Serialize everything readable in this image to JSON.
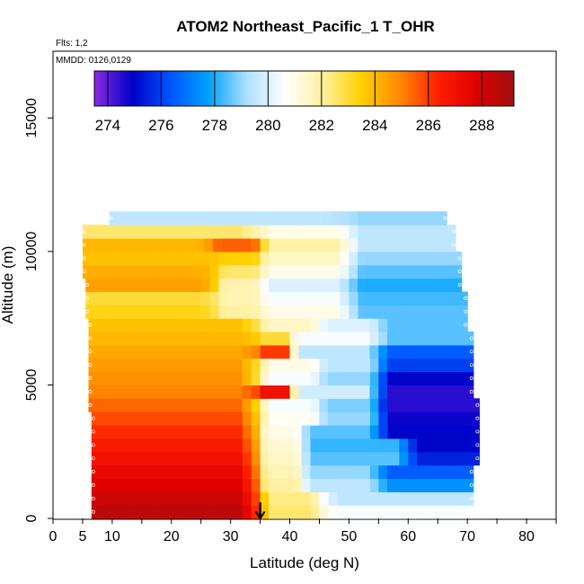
{
  "chart_data": {
    "type": "heatmap",
    "title": "ATOM2 Northeast_Pacific_1 T_OHR",
    "subtitle_flights": "Flts: 1,2",
    "subtitle_dates": "MMDD: 0126,0129",
    "xlabel": "Latitude (deg N)",
    "ylabel": "Altitude (m)",
    "xlim": [
      0,
      85
    ],
    "ylim": [
      0,
      17500
    ],
    "x_ticks": [
      "0",
      "5",
      "10",
      "20",
      "30",
      "40",
      "50",
      "60",
      "70",
      "80"
    ],
    "x_tick_values": [
      0,
      5,
      10,
      20,
      30,
      40,
      50,
      60,
      70,
      80
    ],
    "y_ticks": [
      "0",
      "5000",
      "10000",
      "15000"
    ],
    "y_tick_values": [
      0,
      5000,
      10000,
      15000
    ],
    "colorbar": {
      "range": [
        273.5,
        289.2
      ],
      "ticks": [
        "274",
        "276",
        "278",
        "280",
        "282",
        "284",
        "286",
        "288"
      ],
      "tick_values": [
        274,
        276,
        278,
        280,
        282,
        284,
        286,
        288
      ],
      "colors": [
        "#8a2be2",
        "#0000c8",
        "#0055ff",
        "#00a2ff",
        "#aee0ff",
        "#ffffff",
        "#fff0a0",
        "#ffd000",
        "#ff8a00",
        "#ff2000",
        "#e00000",
        "#a01010"
      ]
    },
    "marker_latitude": 35,
    "grid": false,
    "layers": [
      {
        "alt": 250,
        "segments": [
          [
            6.5,
            35,
            288.6
          ],
          [
            35,
            45,
            282.5
          ],
          [
            45,
            70,
            280.5
          ]
        ]
      },
      {
        "alt": 750,
        "segments": [
          [
            6.5,
            35,
            288.2
          ],
          [
            35,
            45,
            282.3
          ],
          [
            45,
            71,
            279.5
          ]
        ]
      },
      {
        "alt": 1250,
        "segments": [
          [
            6.5,
            35,
            287.8
          ],
          [
            35,
            42,
            282.0
          ],
          [
            42,
            55,
            279.5
          ],
          [
            55,
            71,
            277.5
          ]
        ]
      },
      {
        "alt": 1750,
        "segments": [
          [
            6.5,
            35,
            287.4
          ],
          [
            35,
            42,
            281.8
          ],
          [
            42,
            55,
            279.0
          ],
          [
            55,
            71,
            276.5
          ]
        ]
      },
      {
        "alt": 2250,
        "segments": [
          [
            6.5,
            35,
            287.0
          ],
          [
            35,
            42,
            281.5
          ],
          [
            42,
            60,
            278.5
          ],
          [
            60,
            72,
            275.5
          ]
        ]
      },
      {
        "alt": 2750,
        "segments": [
          [
            6.5,
            35,
            286.6
          ],
          [
            35,
            42,
            281.3
          ],
          [
            42,
            60,
            278.2
          ],
          [
            60,
            72,
            275.0
          ]
        ]
      },
      {
        "alt": 3250,
        "segments": [
          [
            6.5,
            35,
            286.2
          ],
          [
            35,
            42,
            281.0
          ],
          [
            42,
            55,
            278.5
          ],
          [
            55,
            72,
            275.0
          ]
        ]
      },
      {
        "alt": 3750,
        "segments": [
          [
            6.5,
            35,
            285.8
          ],
          [
            35,
            45,
            280.8
          ],
          [
            45,
            55,
            279.0
          ],
          [
            55,
            72,
            274.8
          ]
        ]
      },
      {
        "alt": 4250,
        "segments": [
          [
            6.0,
            35,
            285.4
          ],
          [
            35,
            45,
            280.5
          ],
          [
            45,
            55,
            278.8
          ],
          [
            55,
            72,
            274.5
          ]
        ]
      },
      {
        "alt": 4750,
        "segments": [
          [
            6.0,
            35,
            285.0
          ],
          [
            35,
            40,
            287.0
          ],
          [
            40,
            55,
            279.8
          ],
          [
            55,
            71,
            274.5
          ]
        ]
      },
      {
        "alt": 5250,
        "segments": [
          [
            6.0,
            35,
            284.8
          ],
          [
            35,
            45,
            280.5
          ],
          [
            45,
            55,
            279.0
          ],
          [
            55,
            71,
            275.0
          ]
        ]
      },
      {
        "alt": 5750,
        "segments": [
          [
            6.0,
            35,
            284.6
          ],
          [
            35,
            45,
            281.0
          ],
          [
            45,
            55,
            279.5
          ],
          [
            55,
            71,
            276.0
          ]
        ]
      },
      {
        "alt": 6250,
        "segments": [
          [
            6.0,
            35,
            284.3
          ],
          [
            35,
            40,
            286.0
          ],
          [
            40,
            55,
            279.5
          ],
          [
            55,
            71,
            276.5
          ]
        ]
      },
      {
        "alt": 6750,
        "segments": [
          [
            6.0,
            35,
            284.0
          ],
          [
            35,
            40,
            283.0
          ],
          [
            40,
            55,
            280.5
          ],
          [
            55,
            71,
            278.5
          ]
        ]
      },
      {
        "alt": 7250,
        "segments": [
          [
            6.0,
            35,
            283.8
          ],
          [
            35,
            45,
            281.5
          ],
          [
            45,
            55,
            280.0
          ],
          [
            55,
            70,
            278.5
          ]
        ]
      },
      {
        "alt": 7750,
        "segments": [
          [
            5.5,
            28,
            283.3
          ],
          [
            28,
            35,
            282.0
          ],
          [
            35,
            50,
            281.0
          ],
          [
            50,
            70,
            278.5
          ]
        ]
      },
      {
        "alt": 8250,
        "segments": [
          [
            5.5,
            28,
            283.0
          ],
          [
            28,
            35,
            281.8
          ],
          [
            35,
            50,
            280.5
          ],
          [
            50,
            70,
            278.3
          ]
        ]
      },
      {
        "alt": 8750,
        "segments": [
          [
            5.5,
            28,
            284.5
          ],
          [
            28,
            35,
            281.8
          ],
          [
            35,
            50,
            280.0
          ],
          [
            50,
            69,
            278.0
          ]
        ]
      },
      {
        "alt": 9250,
        "segments": [
          [
            5.0,
            28,
            284.2
          ],
          [
            28,
            35,
            282.5
          ],
          [
            35,
            50,
            281.0
          ],
          [
            50,
            69,
            278.5
          ]
        ]
      },
      {
        "alt": 9750,
        "segments": [
          [
            5.0,
            28,
            283.8
          ],
          [
            28,
            35,
            283.5
          ],
          [
            35,
            50,
            281.5
          ],
          [
            50,
            69,
            279.0
          ]
        ]
      },
      {
        "alt": 10250,
        "segments": [
          [
            5.0,
            27,
            284.0
          ],
          [
            27,
            35,
            285.5
          ],
          [
            35,
            50,
            282.0
          ],
          [
            50,
            68,
            279.5
          ]
        ]
      },
      {
        "alt": 10750,
        "segments": [
          [
            5.0,
            35,
            282.5
          ],
          [
            35,
            50,
            281.0
          ],
          [
            50,
            68,
            279.5
          ]
        ]
      },
      {
        "alt": 11250,
        "segments": [
          [
            9.5,
            50,
            279.5
          ],
          [
            50,
            66.5,
            279.0
          ]
        ]
      }
    ]
  }
}
